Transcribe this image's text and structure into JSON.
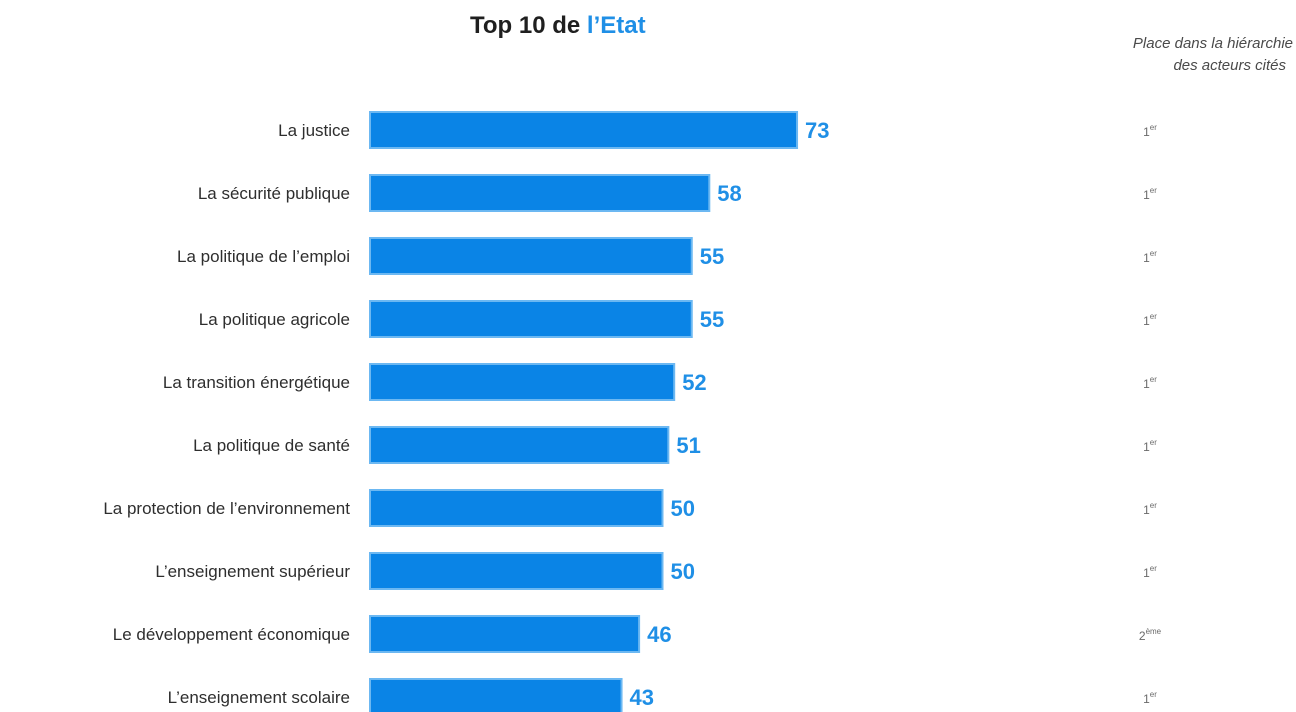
{
  "title": {
    "prefix": "Top 10 de ",
    "highlight": "l’Etat"
  },
  "rank_header": {
    "line1": "Place dans la hiérarchie",
    "line2": "des acteurs cités"
  },
  "colors": {
    "bar": "#0a84e6",
    "bar_stroke": "#6cb8f2",
    "accent": "#1f8fe6"
  },
  "chart_data": {
    "type": "bar",
    "orientation": "horizontal",
    "title": "Top 10 de l’Etat",
    "categories": [
      "La justice",
      "La sécurité publique",
      "La politique de l’emploi",
      "La politique agricole",
      "La transition énergétique",
      "La politique de santé",
      "La protection de l’environnement",
      "L’enseignement supérieur",
      "Le développement économique",
      "L’enseignement scolaire"
    ],
    "values": [
      73,
      58,
      55,
      55,
      52,
      51,
      50,
      50,
      46,
      43
    ],
    "value_labels": [
      "73",
      "58",
      "55",
      "55",
      "52",
      "51",
      "50",
      "50",
      "46",
      "43"
    ],
    "ranks": [
      {
        "num": "1",
        "suffix": "er"
      },
      {
        "num": "1",
        "suffix": "er"
      },
      {
        "num": "1",
        "suffix": "er"
      },
      {
        "num": "1",
        "suffix": "er"
      },
      {
        "num": "1",
        "suffix": "er"
      },
      {
        "num": "1",
        "suffix": "er"
      },
      {
        "num": "1",
        "suffix": "er"
      },
      {
        "num": "1",
        "suffix": "er"
      },
      {
        "num": "2",
        "suffix": "ème"
      },
      {
        "num": "1",
        "suffix": "er"
      }
    ],
    "xlim": [
      0,
      73
    ],
    "grid": false,
    "legend": "none"
  }
}
